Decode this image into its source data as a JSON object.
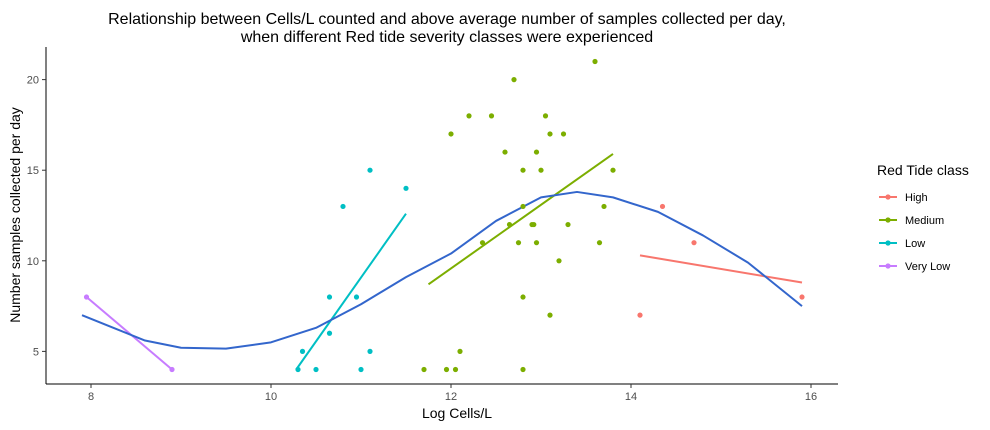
{
  "chart_data": {
    "type": "scatter",
    "title_line1": "Relationship between Cells/L counted and above average number of samples collected per day,",
    "title_line2": "when different Red tide severity classes were experienced",
    "xlabel": "Log Cells/L",
    "ylabel": "Number samples collected per day",
    "xlim": [
      7.5,
      16.3
    ],
    "ylim": [
      3.2,
      21.8
    ],
    "x_ticks": [
      8,
      10,
      12,
      14,
      16
    ],
    "y_ticks": [
      5,
      10,
      15,
      20
    ],
    "grid": false,
    "legend": {
      "title": "Red Tide class",
      "position": "right",
      "entries": [
        "High",
        "Medium",
        "Low",
        "Very Low"
      ]
    },
    "series": [
      {
        "name": "High",
        "color": "#f8766d",
        "points": [
          [
            14.1,
            7
          ],
          [
            14.35,
            13
          ],
          [
            14.7,
            11
          ],
          [
            15.9,
            8
          ]
        ],
        "fit": [
          [
            14.1,
            10.3
          ],
          [
            15.9,
            8.8
          ]
        ]
      },
      {
        "name": "Medium",
        "color": "#7cae00",
        "points": [
          [
            11.7,
            4
          ],
          [
            11.95,
            4
          ],
          [
            12.05,
            4
          ],
          [
            12.1,
            5
          ],
          [
            12.0,
            17
          ],
          [
            12.2,
            18
          ],
          [
            12.45,
            18
          ],
          [
            12.6,
            16
          ],
          [
            12.65,
            12
          ],
          [
            12.7,
            20
          ],
          [
            12.75,
            11
          ],
          [
            12.8,
            13
          ],
          [
            12.8,
            15
          ],
          [
            12.8,
            8
          ],
          [
            12.8,
            4
          ],
          [
            12.35,
            11
          ],
          [
            12.9,
            12
          ],
          [
            12.92,
            12
          ],
          [
            12.95,
            16
          ],
          [
            12.95,
            11
          ],
          [
            13.0,
            15
          ],
          [
            13.05,
            18
          ],
          [
            13.1,
            17
          ],
          [
            13.1,
            7
          ],
          [
            13.2,
            10
          ],
          [
            13.25,
            17
          ],
          [
            13.3,
            12
          ],
          [
            13.6,
            21
          ],
          [
            13.65,
            11
          ],
          [
            13.7,
            13
          ],
          [
            13.8,
            15
          ]
        ],
        "fit": [
          [
            11.75,
            8.7
          ],
          [
            13.8,
            15.9
          ]
        ]
      },
      {
        "name": "Low",
        "color": "#00bfc4",
        "points": [
          [
            10.3,
            4
          ],
          [
            10.35,
            5
          ],
          [
            10.5,
            4
          ],
          [
            10.65,
            8
          ],
          [
            10.65,
            6
          ],
          [
            10.8,
            13
          ],
          [
            10.95,
            8
          ],
          [
            11.0,
            4
          ],
          [
            11.1,
            5
          ],
          [
            11.1,
            15
          ],
          [
            11.5,
            14
          ]
        ],
        "fit": [
          [
            10.28,
            4.0
          ],
          [
            11.5,
            12.6
          ]
        ]
      },
      {
        "name": "Very Low",
        "color": "#c77cff",
        "points": [
          [
            7.95,
            8
          ],
          [
            8.9,
            4
          ]
        ],
        "fit": [
          [
            7.95,
            8.0
          ],
          [
            8.9,
            4.0
          ]
        ]
      }
    ],
    "smooth": {
      "color": "#3366cc",
      "points": [
        [
          7.9,
          7.0
        ],
        [
          8.2,
          6.4
        ],
        [
          8.6,
          5.6
        ],
        [
          9.0,
          5.2
        ],
        [
          9.5,
          5.15
        ],
        [
          10.0,
          5.5
        ],
        [
          10.5,
          6.3
        ],
        [
          11.0,
          7.6
        ],
        [
          11.5,
          9.1
        ],
        [
          12.0,
          10.4
        ],
        [
          12.5,
          12.2
        ],
        [
          13.0,
          13.5
        ],
        [
          13.4,
          13.8
        ],
        [
          13.8,
          13.5
        ],
        [
          14.3,
          12.7
        ],
        [
          14.8,
          11.4
        ],
        [
          15.3,
          9.9
        ],
        [
          15.9,
          7.5
        ]
      ]
    }
  }
}
